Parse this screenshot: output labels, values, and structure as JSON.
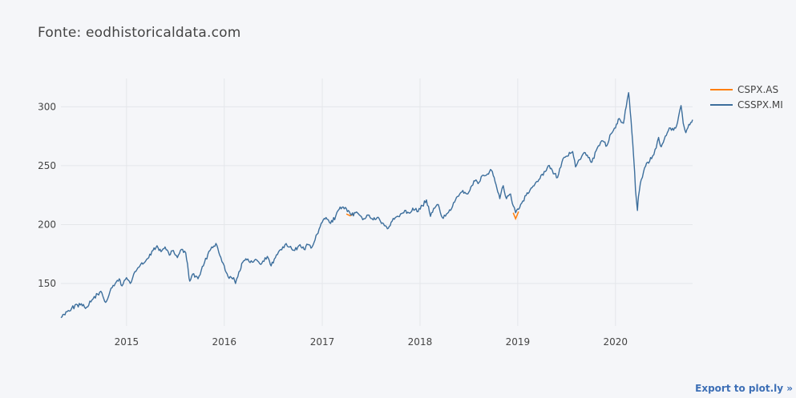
{
  "page": {
    "export_label": "Export to plot.ly »"
  },
  "chart_data": {
    "type": "line",
    "title": "Fonte: eodhistoricaldata.com",
    "xlabel": "",
    "ylabel": "",
    "x_range": [
      "2014-05-01",
      "2020-10-15"
    ],
    "y_range": [
      114,
      324
    ],
    "x_ticks": [
      "2015",
      "2016",
      "2017",
      "2018",
      "2019",
      "2020"
    ],
    "x_tick_dates": [
      "2015-01-01",
      "2016-01-01",
      "2017-01-01",
      "2018-01-01",
      "2019-01-01",
      "2020-01-01"
    ],
    "y_ticks": [
      150,
      200,
      250,
      300
    ],
    "grid": true,
    "legend": "top-right",
    "colors": {
      "CSPX.AS": "#ff7f0e",
      "CSSPX.MI": "#3c6e9c",
      "grid": "#e4e6ea",
      "axis_text": "#444444"
    },
    "series": [
      {
        "name": "CSPX.AS",
        "points": [
          [
            "2017-04-01",
            209
          ],
          [
            "2017-04-15",
            207.5
          ],
          [
            "2017-04-29",
            209
          ],
          [
            "2018-12-15",
            210
          ],
          [
            "2018-12-24",
            205
          ],
          [
            "2019-01-04",
            211
          ]
        ]
      },
      {
        "name": "CSSPX.MI",
        "points": [
          [
            "2014-05-01",
            121
          ],
          [
            "2014-05-20",
            126
          ],
          [
            "2014-06-10",
            129
          ],
          [
            "2014-07-01",
            132
          ],
          [
            "2014-07-20",
            131
          ],
          [
            "2014-08-05",
            130
          ],
          [
            "2014-08-25",
            136
          ],
          [
            "2014-09-15",
            141
          ],
          [
            "2014-10-01",
            142
          ],
          [
            "2014-10-15",
            134
          ],
          [
            "2014-10-31",
            143
          ],
          [
            "2014-11-20",
            150
          ],
          [
            "2014-12-05",
            154
          ],
          [
            "2014-12-15",
            148
          ],
          [
            "2015-01-01",
            155
          ],
          [
            "2015-01-15",
            150
          ],
          [
            "2015-02-01",
            160
          ],
          [
            "2015-02-20",
            165
          ],
          [
            "2015-03-10",
            168
          ],
          [
            "2015-03-25",
            172
          ],
          [
            "2015-04-10",
            178
          ],
          [
            "2015-04-25",
            182
          ],
          [
            "2015-05-10",
            177
          ],
          [
            "2015-05-25",
            181
          ],
          [
            "2015-06-10",
            174
          ],
          [
            "2015-06-25",
            178
          ],
          [
            "2015-07-10",
            172
          ],
          [
            "2015-07-25",
            179
          ],
          [
            "2015-08-10",
            176
          ],
          [
            "2015-08-20",
            160
          ],
          [
            "2015-08-25",
            152
          ],
          [
            "2015-09-05",
            158
          ],
          [
            "2015-09-25",
            154
          ],
          [
            "2015-10-15",
            165
          ],
          [
            "2015-11-01",
            175
          ],
          [
            "2015-11-15",
            181
          ],
          [
            "2015-12-01",
            184
          ],
          [
            "2015-12-15",
            174
          ],
          [
            "2016-01-01",
            165
          ],
          [
            "2016-01-15",
            156
          ],
          [
            "2016-02-05",
            155
          ],
          [
            "2016-02-12",
            150
          ],
          [
            "2016-02-25",
            160
          ],
          [
            "2016-03-10",
            168
          ],
          [
            "2016-03-25",
            170
          ],
          [
            "2016-04-15",
            168
          ],
          [
            "2016-05-01",
            170
          ],
          [
            "2016-05-20",
            167
          ],
          [
            "2016-06-10",
            173
          ],
          [
            "2016-06-24",
            165
          ],
          [
            "2016-07-10",
            172
          ],
          [
            "2016-07-25",
            178
          ],
          [
            "2016-08-15",
            183
          ],
          [
            "2016-09-01",
            181
          ],
          [
            "2016-09-20",
            178
          ],
          [
            "2016-10-10",
            183
          ],
          [
            "2016-10-25",
            179
          ],
          [
            "2016-11-08",
            183
          ],
          [
            "2016-11-20",
            180
          ],
          [
            "2016-12-05",
            187
          ],
          [
            "2016-12-20",
            196
          ],
          [
            "2017-01-01",
            202
          ],
          [
            "2017-01-15",
            206
          ],
          [
            "2017-02-01",
            201
          ],
          [
            "2017-02-20",
            207
          ],
          [
            "2017-03-05",
            213
          ],
          [
            "2017-03-20",
            215
          ],
          [
            "2017-04-05",
            211
          ],
          [
            "2017-04-20",
            208
          ],
          [
            "2017-05-05",
            210
          ],
          [
            "2017-05-20",
            208
          ],
          [
            "2017-06-05",
            205
          ],
          [
            "2017-06-25",
            208
          ],
          [
            "2017-07-10",
            204
          ],
          [
            "2017-07-25",
            206
          ],
          [
            "2017-08-10",
            201
          ],
          [
            "2017-08-25",
            199
          ],
          [
            "2017-09-05",
            197
          ],
          [
            "2017-09-15",
            202
          ],
          [
            "2017-10-01",
            206
          ],
          [
            "2017-10-20",
            209
          ],
          [
            "2017-11-05",
            212
          ],
          [
            "2017-11-20",
            210
          ],
          [
            "2017-12-05",
            214
          ],
          [
            "2017-12-25",
            211
          ],
          [
            "2018-01-10",
            216
          ],
          [
            "2018-01-25",
            221
          ],
          [
            "2018-02-09",
            207
          ],
          [
            "2018-02-25",
            214
          ],
          [
            "2018-03-10",
            217
          ],
          [
            "2018-03-25",
            206
          ],
          [
            "2018-04-10",
            209
          ],
          [
            "2018-04-25",
            212
          ],
          [
            "2018-05-10",
            219
          ],
          [
            "2018-05-25",
            224
          ],
          [
            "2018-06-10",
            229
          ],
          [
            "2018-06-25",
            226
          ],
          [
            "2018-07-10",
            232
          ],
          [
            "2018-07-25",
            237
          ],
          [
            "2018-08-10",
            236
          ],
          [
            "2018-08-25",
            242
          ],
          [
            "2018-09-10",
            243
          ],
          [
            "2018-09-25",
            246
          ],
          [
            "2018-10-05",
            240
          ],
          [
            "2018-10-15",
            231
          ],
          [
            "2018-10-26",
            222
          ],
          [
            "2018-11-08",
            233
          ],
          [
            "2018-11-20",
            222
          ],
          [
            "2018-12-05",
            226
          ],
          [
            "2018-12-15",
            216
          ],
          [
            "2018-12-24",
            210
          ],
          [
            "2019-01-04",
            213
          ],
          [
            "2019-01-20",
            220
          ],
          [
            "2019-02-05",
            227
          ],
          [
            "2019-02-20",
            231
          ],
          [
            "2019-03-10",
            236
          ],
          [
            "2019-03-25",
            239
          ],
          [
            "2019-04-10",
            245
          ],
          [
            "2019-04-25",
            250
          ],
          [
            "2019-05-10",
            246
          ],
          [
            "2019-05-30",
            240
          ],
          [
            "2019-06-15",
            253
          ],
          [
            "2019-07-01",
            258
          ],
          [
            "2019-07-25",
            262
          ],
          [
            "2019-08-05",
            249
          ],
          [
            "2019-08-20",
            255
          ],
          [
            "2019-09-10",
            261
          ],
          [
            "2019-09-25",
            257
          ],
          [
            "2019-10-05",
            253
          ],
          [
            "2019-10-25",
            265
          ],
          [
            "2019-11-15",
            271
          ],
          [
            "2019-11-30",
            267
          ],
          [
            "2019-12-15",
            277
          ],
          [
            "2020-01-01",
            282
          ],
          [
            "2020-01-15",
            290
          ],
          [
            "2020-01-31",
            286
          ],
          [
            "2020-02-10",
            300
          ],
          [
            "2020-02-19",
            312
          ],
          [
            "2020-02-25",
            296
          ],
          [
            "2020-03-02",
            279
          ],
          [
            "2020-03-09",
            257
          ],
          [
            "2020-03-16",
            229
          ],
          [
            "2020-03-23",
            212
          ],
          [
            "2020-03-27",
            224
          ],
          [
            "2020-04-06",
            238
          ],
          [
            "2020-04-15",
            245
          ],
          [
            "2020-04-30",
            253
          ],
          [
            "2020-05-15",
            256
          ],
          [
            "2020-06-01",
            265
          ],
          [
            "2020-06-10",
            274
          ],
          [
            "2020-06-20",
            266
          ],
          [
            "2020-07-05",
            275
          ],
          [
            "2020-07-20",
            282
          ],
          [
            "2020-08-05",
            280
          ],
          [
            "2020-08-20",
            287
          ],
          [
            "2020-09-02",
            301
          ],
          [
            "2020-09-10",
            286
          ],
          [
            "2020-09-20",
            278
          ],
          [
            "2020-10-01",
            285
          ],
          [
            "2020-10-15",
            289
          ]
        ]
      }
    ]
  }
}
